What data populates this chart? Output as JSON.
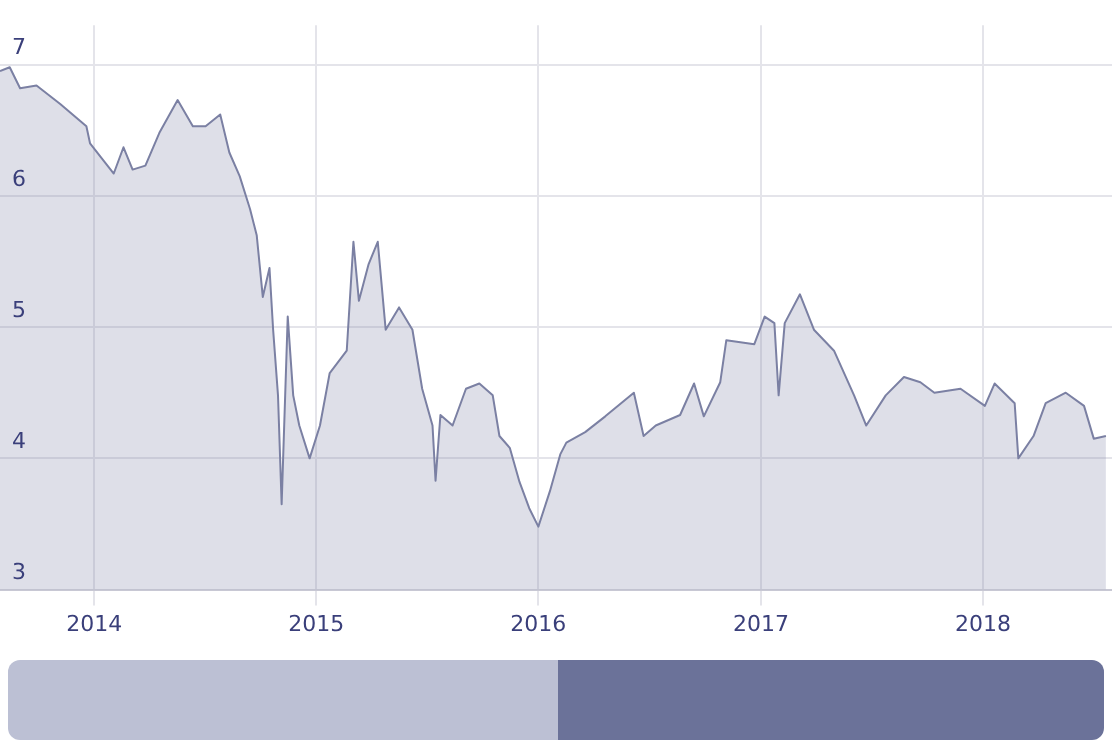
{
  "chart_data": {
    "type": "area",
    "grid": true,
    "marker": "none",
    "xlim": [
      "2013-07-30",
      "2018-08-01"
    ],
    "xticks": [
      {
        "value": "2014-01-01",
        "label": "2014"
      },
      {
        "value": "2015-01-01",
        "label": "2015"
      },
      {
        "value": "2016-01-01",
        "label": "2016"
      },
      {
        "value": "2017-01-01",
        "label": "2017"
      },
      {
        "value": "2018-01-01",
        "label": "2018"
      }
    ],
    "ylim": [
      3,
      7.3
    ],
    "yticks": [
      3,
      4,
      5,
      6,
      7
    ],
    "series": [
      {
        "color": "#7b80a3",
        "x": [
          "2013-07-30",
          "2013-08-15",
          "2013-09-01",
          "2013-09-28",
          "2013-11-06",
          "2013-12-19",
          "2013-12-25",
          "2014-02-02",
          "2014-02-18",
          "2014-03-05",
          "2014-03-26",
          "2014-04-18",
          "2014-05-18",
          "2014-06-12",
          "2014-07-03",
          "2014-07-27",
          "2014-08-11",
          "2014-08-28",
          "2014-09-14",
          "2014-09-25",
          "2014-10-05",
          "2014-10-16",
          "2014-10-22",
          "2014-10-30",
          "2014-11-05",
          "2014-11-15",
          "2014-11-24",
          "2014-12-04",
          "2014-12-21",
          "2015-01-07",
          "2015-01-23",
          "2015-02-20",
          "2015-03-03",
          "2015-03-12",
          "2015-03-28",
          "2015-04-12",
          "2015-04-25",
          "2015-05-17",
          "2015-06-08",
          "2015-06-24",
          "2015-07-11",
          "2015-07-16",
          "2015-07-24",
          "2015-08-13",
          "2015-09-04",
          "2015-09-26",
          "2015-10-18",
          "2015-10-29",
          "2015-11-15",
          "2015-12-01",
          "2015-12-17",
          "2016-01-01",
          "2016-01-20",
          "2016-02-06",
          "2016-02-16",
          "2016-03-18",
          "2016-04-20",
          "2016-06-06",
          "2016-06-22",
          "2016-07-12",
          "2016-08-21",
          "2016-09-13",
          "2016-09-29",
          "2016-10-26",
          "2016-11-05",
          "2016-12-21",
          "2017-01-07",
          "2017-01-23",
          "2017-01-30",
          "2017-02-09",
          "2017-03-06",
          "2017-03-29",
          "2017-05-01",
          "2017-06-03",
          "2017-06-23",
          "2017-07-25",
          "2017-08-24",
          "2017-09-20",
          "2017-10-13",
          "2017-11-25",
          "2018-01-04",
          "2018-01-20",
          "2018-02-22",
          "2018-02-28",
          "2018-03-25",
          "2018-04-14",
          "2018-05-17",
          "2018-06-16",
          "2018-07-02",
          "2018-07-22"
        ],
        "values": [
          6.95,
          6.98,
          6.82,
          6.84,
          6.7,
          6.53,
          6.4,
          6.17,
          6.37,
          6.2,
          6.23,
          6.48,
          6.73,
          6.53,
          6.53,
          6.62,
          6.33,
          6.15,
          5.9,
          5.7,
          5.23,
          5.45,
          4.98,
          4.48,
          3.65,
          5.08,
          4.48,
          4.25,
          4.0,
          4.25,
          4.65,
          4.82,
          5.65,
          5.2,
          5.48,
          5.65,
          4.98,
          5.15,
          4.98,
          4.53,
          4.25,
          3.83,
          4.33,
          4.25,
          4.53,
          4.57,
          4.48,
          4.17,
          4.08,
          3.82,
          3.62,
          3.48,
          3.75,
          4.03,
          4.12,
          4.2,
          4.32,
          4.5,
          4.17,
          4.25,
          4.33,
          4.57,
          4.32,
          4.58,
          4.9,
          4.87,
          5.08,
          5.03,
          4.48,
          5.03,
          5.25,
          4.98,
          4.82,
          4.48,
          4.25,
          4.48,
          4.62,
          4.58,
          4.5,
          4.53,
          4.4,
          4.57,
          4.42,
          4.0,
          4.17,
          4.42,
          4.5,
          4.4,
          4.15,
          4.17
        ]
      }
    ]
  }
}
